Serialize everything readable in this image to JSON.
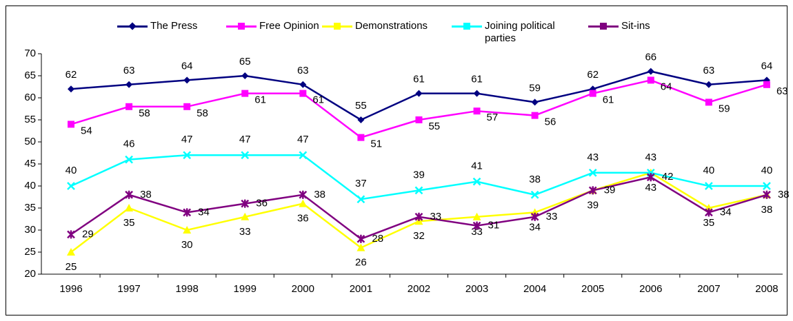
{
  "chart_data": {
    "type": "line",
    "categories": [
      "1996",
      "1997",
      "1998",
      "1999",
      "2000",
      "2001",
      "2002",
      "2003",
      "2004",
      "2005",
      "2006",
      "2007",
      "2008"
    ],
    "series": [
      {
        "name": "The Press",
        "color": "#000080",
        "marker": "diamond",
        "values": [
          62,
          63,
          64,
          65,
          63,
          55,
          61,
          61,
          59,
          62,
          66,
          63,
          64
        ]
      },
      {
        "name": "Free Opinion",
        "color": "#ff00ff",
        "marker": "square",
        "values": [
          54,
          58,
          58,
          61,
          61,
          51,
          55,
          57,
          56,
          61,
          64,
          59,
          63
        ]
      },
      {
        "name": "Demonstrations",
        "color": "#ffff00",
        "marker": "triangle",
        "values": [
          25,
          35,
          30,
          33,
          36,
          26,
          32,
          33,
          34,
          39,
          43,
          35,
          38
        ]
      },
      {
        "name": "Joining political parties",
        "color": "#00ffff",
        "marker": "x",
        "values": [
          40,
          46,
          47,
          47,
          47,
          37,
          39,
          41,
          38,
          43,
          43,
          40,
          40
        ]
      },
      {
        "name": "Sit-ins",
        "color": "#800080",
        "marker": "asterisk",
        "values": [
          29,
          38,
          34,
          36,
          38,
          28,
          33,
          31,
          33,
          39,
          42,
          34,
          38
        ]
      }
    ],
    "ylim": [
      20,
      70
    ],
    "yticks": [
      20,
      25,
      30,
      35,
      40,
      45,
      50,
      55,
      60,
      65,
      70
    ],
    "grid": false,
    "legend": "top"
  }
}
